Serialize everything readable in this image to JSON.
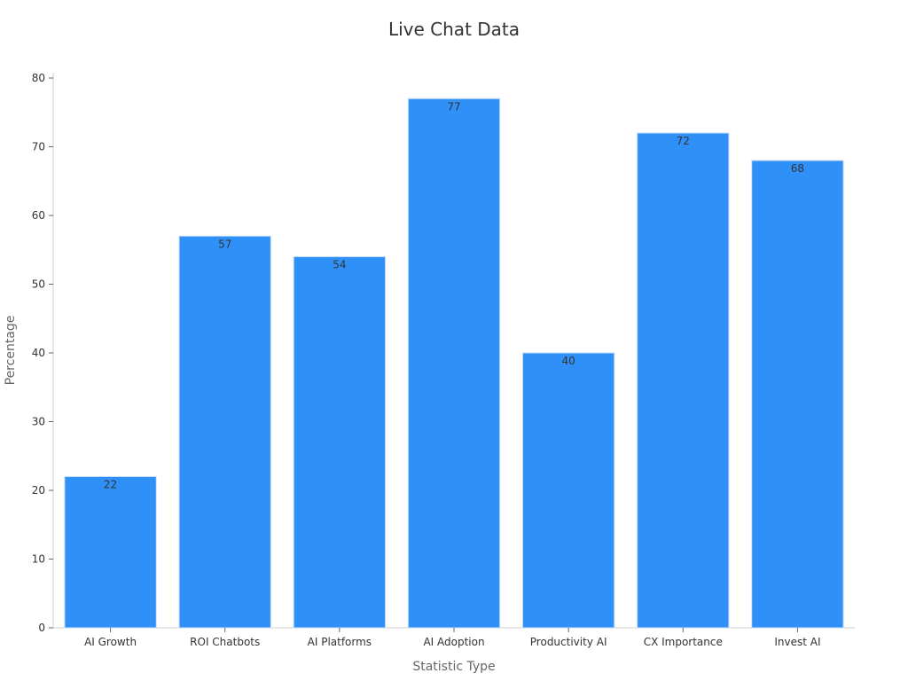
{
  "chart_data": {
    "type": "bar",
    "title": "Live Chat Data",
    "xlabel": "Statistic Type",
    "ylabel": "Percentage",
    "categories": [
      "AI Growth",
      "ROI Chatbots",
      "AI Platforms",
      "AI Adoption",
      "Productivity AI",
      "CX Importance",
      "Invest AI"
    ],
    "values": [
      22,
      57,
      54,
      77,
      40,
      72,
      68
    ],
    "value_labels": [
      "22",
      "57",
      "54",
      "77",
      "40",
      "72",
      "68"
    ],
    "ylim": [
      0,
      80
    ],
    "yticks": [
      0,
      10,
      20,
      30,
      40,
      50,
      60,
      70,
      80
    ],
    "ytick_labels": [
      "0",
      "10",
      "20",
      "30",
      "40",
      "50",
      "60",
      "70",
      "80"
    ],
    "grid": false,
    "legend": "none",
    "colors": {
      "bar": "#2f91f7",
      "bar_edge": "#c6dcf5"
    }
  }
}
